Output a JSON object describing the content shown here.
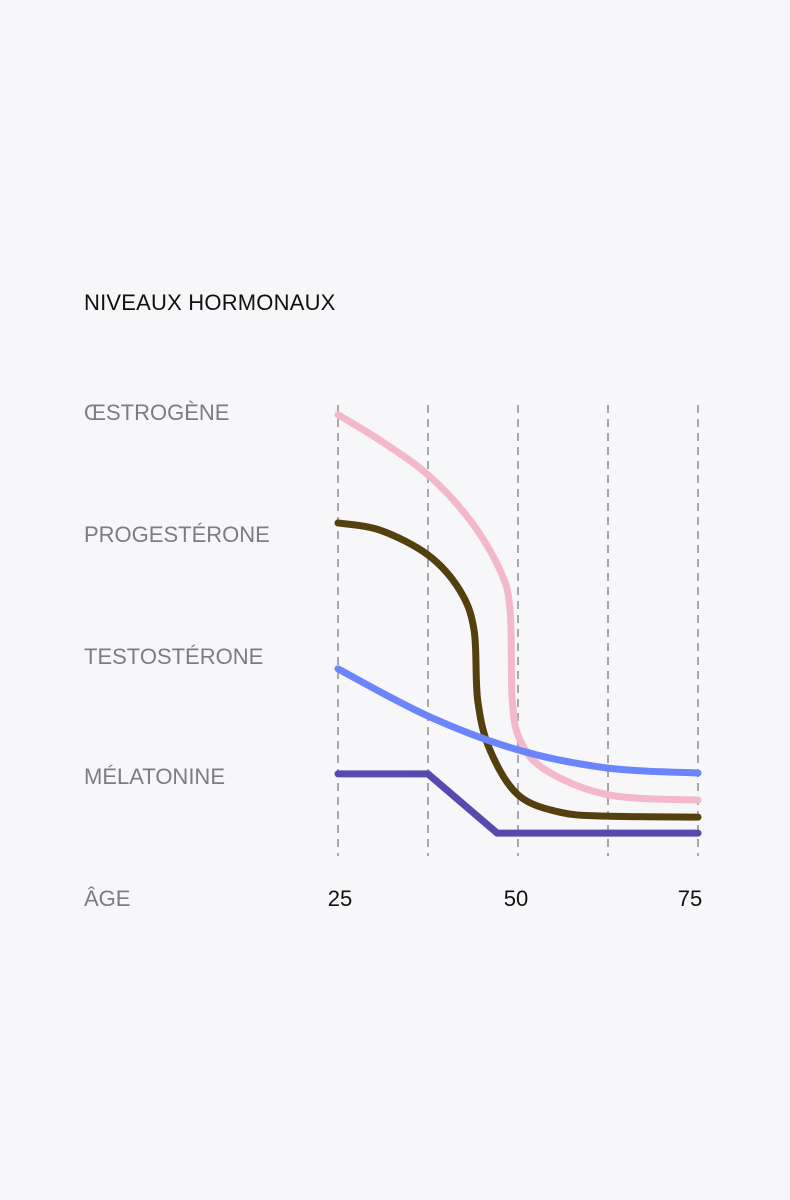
{
  "chart_data": {
    "type": "line",
    "title": "NIVEAUX HORMONAUX",
    "xlabel": "ÂGE",
    "ylabel": "",
    "xlim": [
      25,
      75
    ],
    "ylim": [
      0,
      100
    ],
    "x_ticks": [
      25,
      50,
      75
    ],
    "x_tick_labels": [
      "25",
      "50",
      "75"
    ],
    "x_gridlines": [
      25,
      37.5,
      50,
      62.5,
      75
    ],
    "grid": "vertical dashed",
    "legend": "left, labels beside series",
    "series": [
      {
        "name": "ŒSTROGÈNE",
        "color": "#f4b8cb",
        "smooth": true,
        "points": [
          [
            25,
            97.8
          ],
          [
            30.8,
            92.1
          ],
          [
            37.5,
            84.3
          ],
          [
            43.3,
            74.2
          ],
          [
            47.5,
            62.9
          ],
          [
            48.9,
            53.9
          ],
          [
            49.2,
            33.7
          ],
          [
            50.3,
            24.7
          ],
          [
            53.8,
            18.0
          ],
          [
            62.5,
            12.4
          ],
          [
            75,
            11.2
          ]
        ]
      },
      {
        "name": "PROGESTÉRONE",
        "color": "#54400e",
        "smooth": true,
        "points": [
          [
            25,
            73.5
          ],
          [
            30.8,
            71.9
          ],
          [
            37.5,
            66.3
          ],
          [
            41.9,
            58.4
          ],
          [
            43.9,
            49.4
          ],
          [
            44.4,
            33.7
          ],
          [
            46.1,
            22.5
          ],
          [
            50,
            12.4
          ],
          [
            55.8,
            8.5
          ],
          [
            62.5,
            7.6
          ],
          [
            75,
            7.4
          ]
        ]
      },
      {
        "name": "TESTOSTÉRONE",
        "color": "#6b85fc",
        "smooth": true,
        "points": [
          [
            25,
            40.7
          ],
          [
            37.5,
            30.1
          ],
          [
            50,
            22.5
          ],
          [
            62.5,
            18.4
          ],
          [
            75,
            17.3
          ]
        ]
      },
      {
        "name": "MÉLATONINE",
        "color": "#564aae",
        "smooth": false,
        "points": [
          [
            25,
            17.1
          ],
          [
            37.5,
            17.1
          ],
          [
            47.1,
            3.8
          ],
          [
            75,
            3.8
          ]
        ]
      }
    ]
  }
}
